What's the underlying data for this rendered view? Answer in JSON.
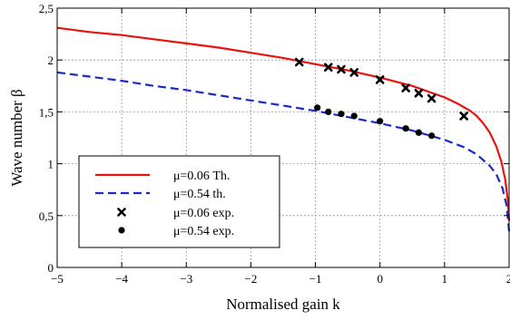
{
  "chart_data": {
    "type": "line",
    "title": "",
    "xlabel": "Normalised gain k",
    "ylabel": "Wave number β",
    "xlim": [
      -5,
      2
    ],
    "ylim": [
      0,
      2.5
    ],
    "x_ticks": [
      -5,
      -4,
      -3,
      -2,
      -1,
      0,
      1,
      2
    ],
    "x_tick_labels": [
      "−5",
      "−4",
      "−3",
      "−2",
      "−1",
      "0",
      "1",
      "2"
    ],
    "y_ticks": [
      0,
      0.5,
      1,
      1.5,
      2,
      2.5
    ],
    "y_tick_labels": [
      "0",
      "0,5",
      "1",
      "1,5",
      "2",
      "2,5"
    ],
    "grid": true,
    "legend_position": "bottom-left",
    "series": [
      {
        "name": "μ=0.06 Th.",
        "kind": "line",
        "style": "solid",
        "color": "#e8130f",
        "x": [
          -5,
          -4.5,
          -4,
          -3.5,
          -3,
          -2.5,
          -2,
          -1.5,
          -1,
          -0.5,
          0,
          0.5,
          1,
          1.2,
          1.4,
          1.5,
          1.6,
          1.7,
          1.8,
          1.88,
          1.94,
          1.98,
          2
        ],
        "y": [
          2.31,
          2.27,
          2.24,
          2.2,
          2.16,
          2.12,
          2.07,
          2.02,
          1.96,
          1.9,
          1.83,
          1.75,
          1.64,
          1.58,
          1.51,
          1.46,
          1.39,
          1.3,
          1.17,
          1.02,
          0.85,
          0.65,
          0.45
        ]
      },
      {
        "name": "μ=0.54 th.",
        "kind": "line",
        "style": "dashed",
        "color": "#1a2bcc",
        "x": [
          -5,
          -4.5,
          -4,
          -3.5,
          -3,
          -2.5,
          -2,
          -1.5,
          -1,
          -0.5,
          0,
          0.5,
          1,
          1.3,
          1.5,
          1.7,
          1.8,
          1.9,
          1.96,
          2
        ],
        "y": [
          1.88,
          1.84,
          1.8,
          1.75,
          1.71,
          1.66,
          1.61,
          1.56,
          1.51,
          1.45,
          1.39,
          1.32,
          1.23,
          1.16,
          1.09,
          0.98,
          0.9,
          0.76,
          0.6,
          0.35
        ]
      },
      {
        "name": "μ=0.06 exp.",
        "kind": "scatter",
        "marker": "cross",
        "color": "#000000",
        "x": [
          -1.25,
          -0.8,
          -0.6,
          -0.4,
          0,
          0.4,
          0.6,
          0.8,
          1.3
        ],
        "y": [
          1.98,
          1.93,
          1.91,
          1.88,
          1.81,
          1.73,
          1.68,
          1.63,
          1.46
        ]
      },
      {
        "name": "μ=0.54 exp.",
        "kind": "scatter",
        "marker": "circle",
        "color": "#000000",
        "x": [
          -0.97,
          -0.8,
          -0.6,
          -0.4,
          0,
          0.4,
          0.6,
          0.8
        ],
        "y": [
          1.54,
          1.5,
          1.48,
          1.46,
          1.41,
          1.34,
          1.3,
          1.27
        ]
      }
    ]
  }
}
